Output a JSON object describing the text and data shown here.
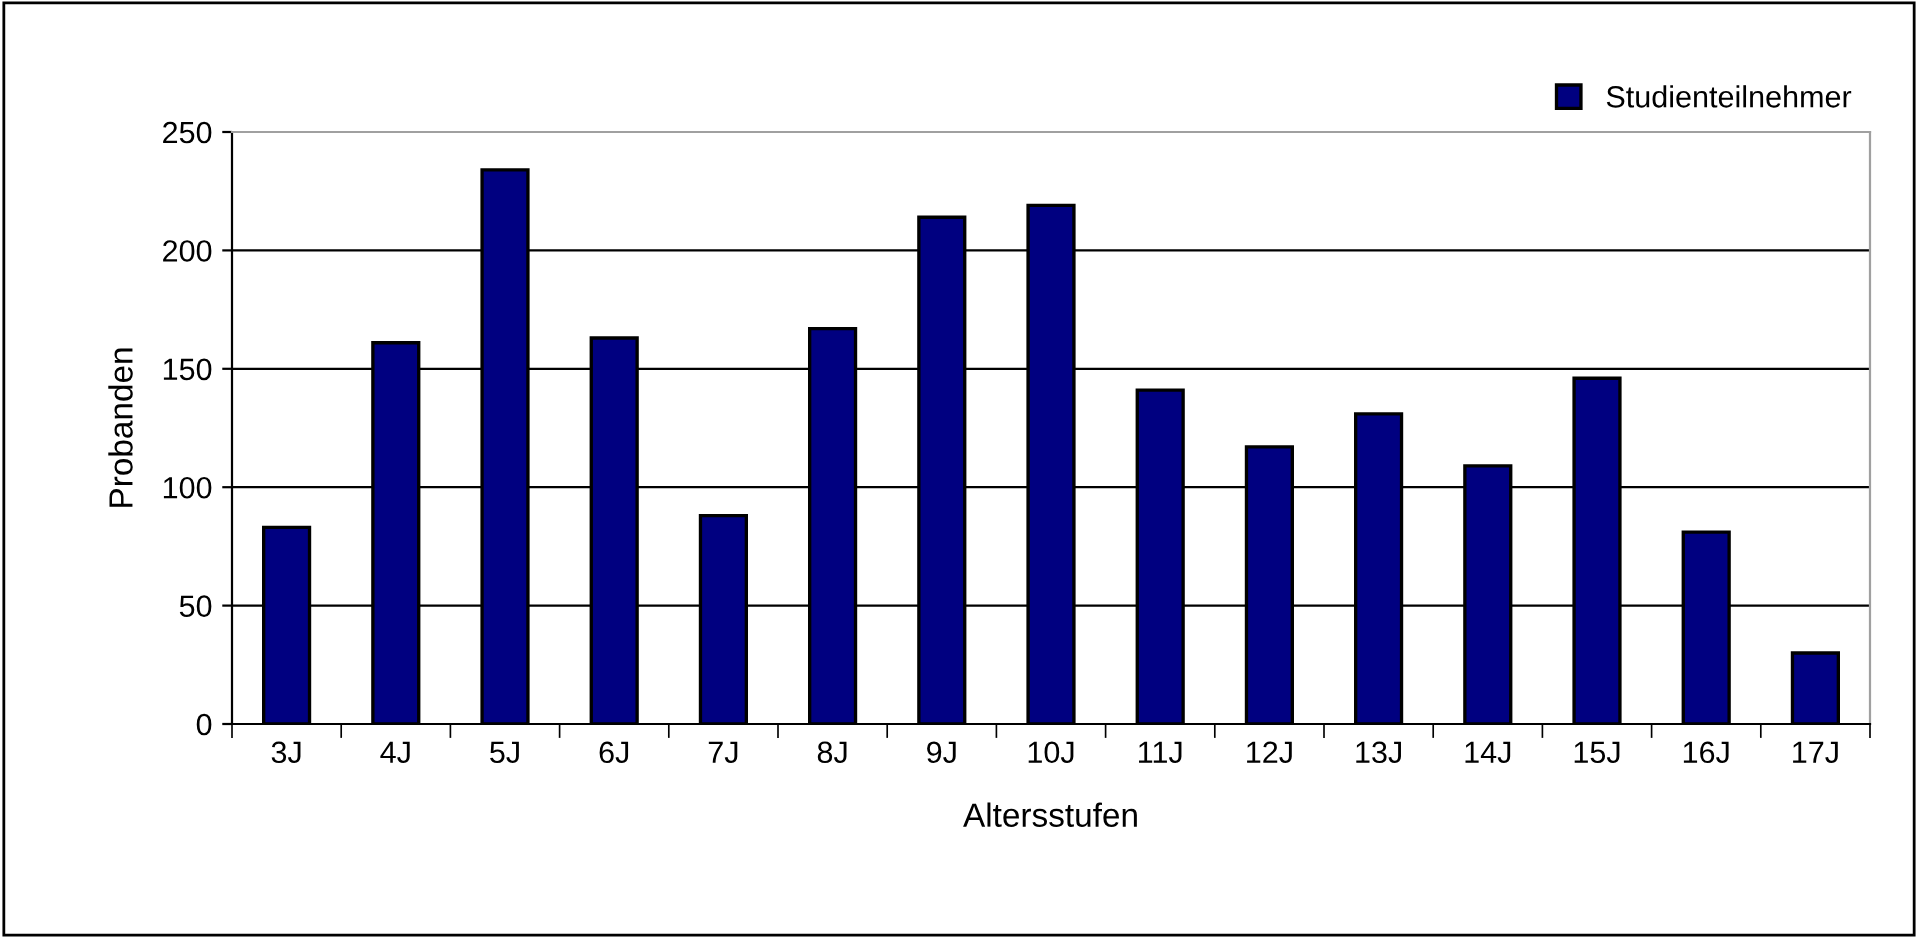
{
  "chart_data": {
    "type": "bar",
    "xlabel": "Altersstufen",
    "ylabel": "Probanden",
    "categories": [
      "3J",
      "4J",
      "5J",
      "6J",
      "7J",
      "8J",
      "9J",
      "10J",
      "11J",
      "12J",
      "13J",
      "14J",
      "15J",
      "16J",
      "17J"
    ],
    "series": [
      {
        "name": "Studienteilnehmer",
        "color": "#000080",
        "values": [
          83,
          161,
          234,
          163,
          88,
          167,
          214,
          219,
          141,
          117,
          131,
          109,
          146,
          81,
          30
        ]
      }
    ],
    "ylim": [
      0,
      250
    ],
    "yticks": [
      0,
      50,
      100,
      150,
      200,
      250
    ],
    "grid": "y",
    "legend": "top right"
  }
}
